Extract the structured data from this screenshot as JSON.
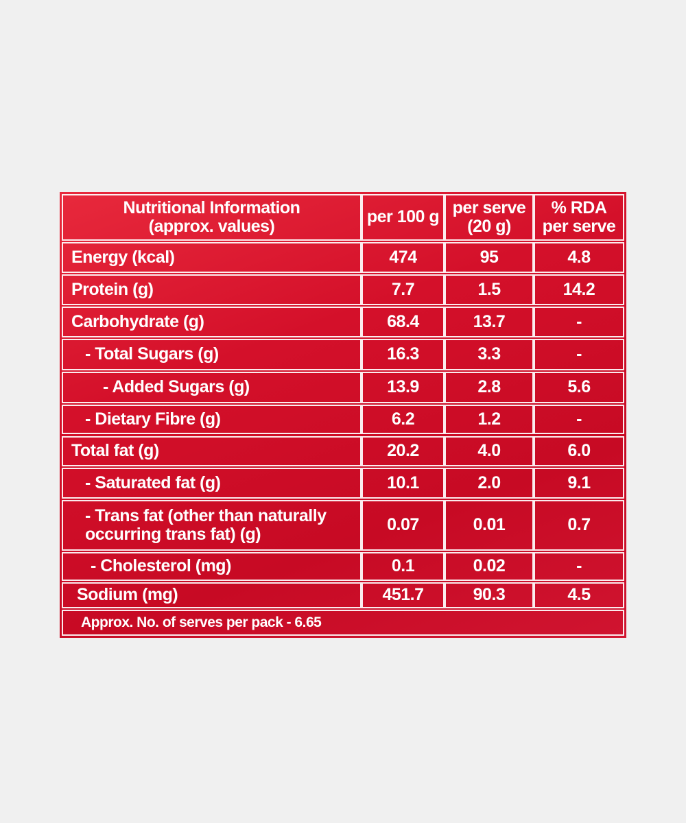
{
  "table": {
    "header": [
      [
        "Nutritional Information",
        "(approx. values)"
      ],
      [
        "per 100 g"
      ],
      [
        "per serve",
        "(20 g)"
      ],
      [
        "% RDA",
        "per serve"
      ]
    ],
    "rows": [
      [
        "Energy (kcal)",
        "474",
        "95",
        "4.8"
      ],
      [
        "Protein (g)",
        "7.7",
        "1.5",
        "14.2"
      ],
      [
        "Carbohydrate (g)",
        "68.4",
        "13.7",
        "-"
      ],
      [
        "- Total Sugars (g)",
        "16.3",
        "3.3",
        "-"
      ],
      [
        "- Added Sugars (g)",
        "13.9",
        "2.8",
        "5.6"
      ],
      [
        "- Dietary Fibre (g)",
        "6.2",
        "1.2",
        "-"
      ],
      [
        "Total fat (g)",
        "20.2",
        "4.0",
        "6.0"
      ],
      [
        "- Saturated fat (g)",
        "10.1",
        "2.0",
        "9.1"
      ],
      [
        "- Trans fat (other than naturally occurring trans fat) (g)",
        "0.07",
        "0.01",
        "0.7"
      ],
      [
        "- Cholesterol (mg)",
        "0.1",
        "0.02",
        "-"
      ],
      [
        "Sodium (mg)",
        "451.7",
        "90.3",
        "4.5"
      ]
    ],
    "footer": "Approx. No. of serves per pack - 6.65"
  }
}
